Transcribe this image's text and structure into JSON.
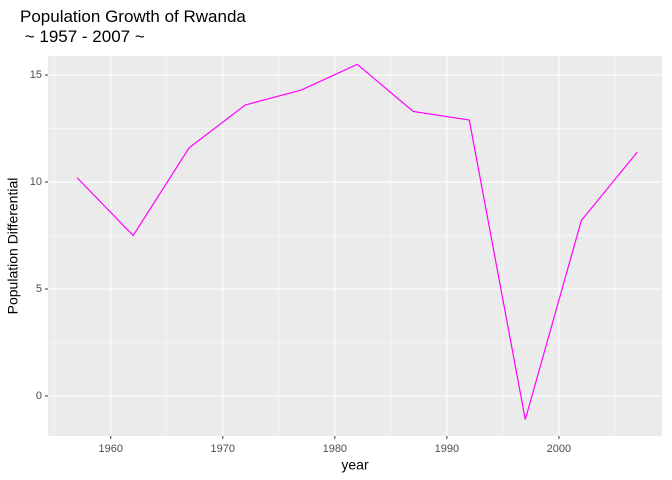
{
  "chart_data": {
    "type": "line",
    "title": "Population Growth of Rwanda",
    "subtitle": " ~ 1957 - 2007 ~",
    "x_label": "year",
    "y_label": "Population Differential",
    "x": [
      1957,
      1962,
      1967,
      1972,
      1977,
      1982,
      1987,
      1992,
      1997,
      2002,
      2007
    ],
    "series": [
      {
        "name": "Rwanda",
        "color": "#ff00ff",
        "values": [
          10.2,
          7.5,
          11.6,
          13.6,
          14.3,
          15.5,
          13.3,
          12.9,
          -1.1,
          8.2,
          11.4
        ]
      }
    ],
    "xlim": [
      1954.4,
      2009.2
    ],
    "xticks": [
      1960,
      1970,
      1980,
      1990,
      2000
    ],
    "ylim": [
      -1.87,
      15.89
    ],
    "yticks": [
      0,
      5,
      10,
      15
    ],
    "grid": true,
    "legend": false
  }
}
